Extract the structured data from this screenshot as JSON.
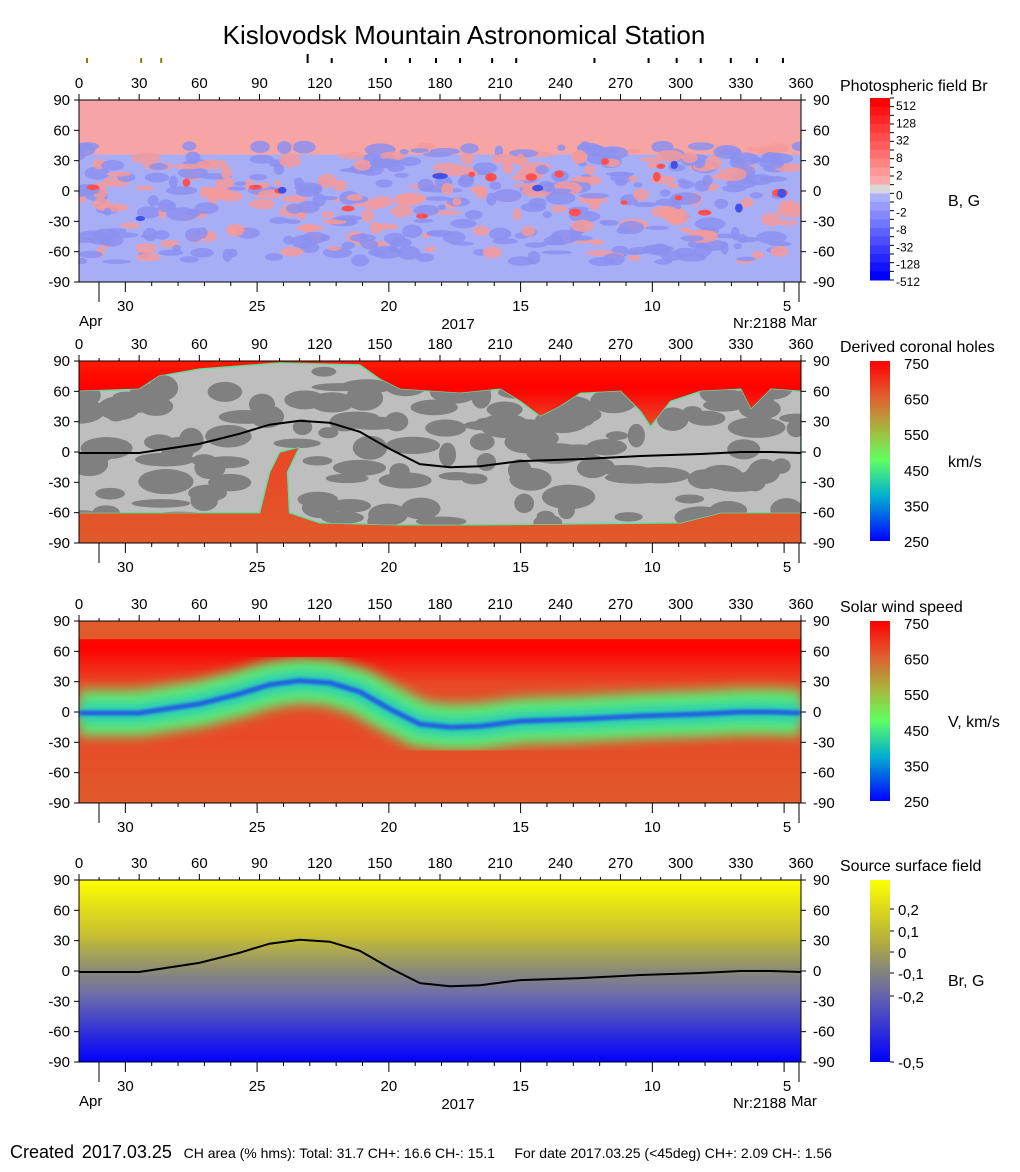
{
  "title": "Kislovodsk Mountain Astronomical Station",
  "top_markers": {
    "olive_longitudes": [
      4,
      31,
      41
    ],
    "black_longitudes": [
      114,
      126,
      153,
      165,
      178,
      190,
      206,
      218,
      257,
      284,
      298,
      310,
      325,
      338,
      351
    ],
    "olive_color": "#808000"
  },
  "date_axis": {
    "day_labels": [
      "30",
      "25",
      "20",
      "15",
      "10",
      "5"
    ],
    "start_month": "Apr",
    "end_month": "Mar",
    "year": "2017",
    "rotation": "Nr:2188"
  },
  "chart_data": [
    {
      "type": "heatmap",
      "title": "Photospheric field Br",
      "unit_label": "B, G",
      "x_ticks": [
        "0",
        "30",
        "60",
        "90",
        "120",
        "150",
        "180",
        "210",
        "240",
        "270",
        "300",
        "330",
        "360"
      ],
      "y_ticks": [
        "90",
        "60",
        "30",
        "0",
        "-30",
        "-60",
        "-90"
      ],
      "xlim": [
        0,
        360
      ],
      "ylim": [
        -90,
        90
      ],
      "colorbar_labels": [
        "512",
        "128",
        "32",
        "8",
        "2",
        "0",
        "-2",
        "-8",
        "-32",
        "-128",
        "-512"
      ],
      "colors": {
        "positive": "#ff0000",
        "negative": "#0000ff",
        "zero": "#d8d8d8"
      }
    },
    {
      "type": "heatmap",
      "title": "Derived coronal holes",
      "unit_label": "km/s",
      "x_ticks": [
        "0",
        "30",
        "60",
        "90",
        "120",
        "150",
        "180",
        "210",
        "240",
        "270",
        "300",
        "330",
        "360"
      ],
      "y_ticks": [
        "90",
        "60",
        "30",
        "0",
        "-30",
        "-60",
        "-90"
      ],
      "xlim": [
        0,
        360
      ],
      "ylim": [
        -90,
        90
      ],
      "colorbar_labels": [
        "750",
        "650",
        "550",
        "450",
        "350",
        "250"
      ],
      "colors": {
        "hole": "#e84a28",
        "pole": "#ff1a00",
        "closed_light": "#bebebe",
        "closed_dark": "#808080"
      }
    },
    {
      "type": "heatmap",
      "title": "Solar wind speed",
      "unit_label": "V, km/s",
      "x_ticks": [
        "0",
        "30",
        "60",
        "90",
        "120",
        "150",
        "180",
        "210",
        "240",
        "270",
        "300",
        "330",
        "360"
      ],
      "y_ticks": [
        "90",
        "60",
        "30",
        "0",
        "-30",
        "-60",
        "-90"
      ],
      "xlim": [
        0,
        360
      ],
      "ylim": [
        -90,
        90
      ],
      "colorbar_labels": [
        "750",
        "650",
        "550",
        "450",
        "350",
        "250"
      ]
    },
    {
      "type": "heatmap",
      "title": "Source surface field",
      "unit_label": "Br, G",
      "x_ticks": [
        "0",
        "30",
        "60",
        "90",
        "120",
        "150",
        "180",
        "210",
        "240",
        "270",
        "300",
        "330",
        "360"
      ],
      "y_ticks": [
        "90",
        "60",
        "30",
        "0",
        "-30",
        "-60",
        "-90"
      ],
      "xlim": [
        0,
        360
      ],
      "ylim": [
        -90,
        90
      ],
      "colorbar_labels": [
        "0,2",
        "0,1",
        "0",
        "-0,1",
        "-0,2",
        "-0,5"
      ],
      "colorbar_values": [
        0.2,
        0.1,
        0,
        -0.1,
        -0.2,
        -0.5
      ],
      "colors": {
        "positive": "#ffff00",
        "zero": "#8a8a78",
        "negative": "#0000ff"
      }
    }
  ],
  "neutral_line": {
    "lon": [
      0,
      30,
      60,
      80,
      95,
      110,
      125,
      140,
      155,
      170,
      185,
      200,
      220,
      250,
      280,
      310,
      330,
      345,
      360
    ],
    "lat": [
      -1,
      -1,
      8,
      18,
      27,
      31,
      29,
      20,
      3,
      -12,
      -15,
      -14,
      -9,
      -7,
      -4,
      -2,
      0,
      0,
      -1
    ]
  },
  "footer": {
    "created_label": "Created",
    "created_date": "2017.03.25",
    "ch_area": "CH area (% hms): Total: 31.7 CH+: 16.6   CH-: 15.1",
    "for_date": "For date 2017.03.25 (<45deg) CH+: 2.09    CH-: 1.56"
  }
}
